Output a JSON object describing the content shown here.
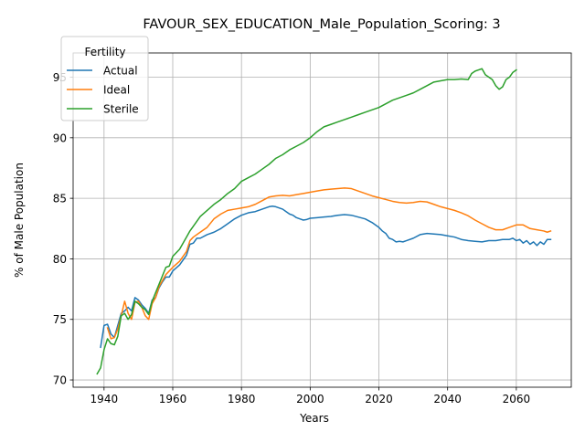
{
  "chart_data": {
    "type": "line",
    "title": "FAVOUR_SEX_EDUCATION_Male_Population_Scoring: 3",
    "xlabel": "Years",
    "ylabel": "% of Male Population",
    "xlim": [
      1931,
      2076
    ],
    "ylim": [
      69.4,
      97.0
    ],
    "xticks": [
      1940,
      1960,
      1980,
      2000,
      2020,
      2040,
      2060
    ],
    "yticks": [
      70,
      75,
      80,
      85,
      90,
      95
    ],
    "grid": true,
    "legend": {
      "title": "Fertility",
      "position": "upper-left",
      "entries": [
        "Actual",
        "Ideal",
        "Sterile"
      ]
    },
    "series": [
      {
        "name": "Actual",
        "color": "#1f77b4",
        "points": [
          [
            1939,
            72.7
          ],
          [
            1940,
            74.5
          ],
          [
            1941,
            74.6
          ],
          [
            1942,
            73.8
          ],
          [
            1943,
            73.5
          ],
          [
            1944,
            74.5
          ],
          [
            1945,
            75.5
          ],
          [
            1946,
            75.7
          ],
          [
            1947,
            76.0
          ],
          [
            1948,
            75.7
          ],
          [
            1949,
            76.8
          ],
          [
            1950,
            76.6
          ],
          [
            1951,
            76.2
          ],
          [
            1952,
            75.9
          ],
          [
            1953,
            75.5
          ],
          [
            1954,
            76.6
          ],
          [
            1955,
            76.8
          ],
          [
            1956,
            77.6
          ],
          [
            1957,
            78.1
          ],
          [
            1958,
            78.5
          ],
          [
            1959,
            78.5
          ],
          [
            1960,
            79.0
          ],
          [
            1962,
            79.5
          ],
          [
            1964,
            80.3
          ],
          [
            1965,
            81.2
          ],
          [
            1966,
            81.3
          ],
          [
            1967,
            81.7
          ],
          [
            1968,
            81.7
          ],
          [
            1970,
            82.0
          ],
          [
            1972,
            82.2
          ],
          [
            1974,
            82.5
          ],
          [
            1976,
            82.9
          ],
          [
            1978,
            83.3
          ],
          [
            1980,
            83.6
          ],
          [
            1982,
            83.8
          ],
          [
            1984,
            83.9
          ],
          [
            1986,
            84.1
          ],
          [
            1988,
            84.3
          ],
          [
            1989,
            84.35
          ],
          [
            1990,
            84.3
          ],
          [
            1992,
            84.1
          ],
          [
            1993,
            83.9
          ],
          [
            1994,
            83.7
          ],
          [
            1995,
            83.6
          ],
          [
            1996,
            83.4
          ],
          [
            1997,
            83.3
          ],
          [
            1998,
            83.2
          ],
          [
            1999,
            83.25
          ],
          [
            2000,
            83.35
          ],
          [
            2002,
            83.4
          ],
          [
            2004,
            83.45
          ],
          [
            2006,
            83.5
          ],
          [
            2008,
            83.6
          ],
          [
            2010,
            83.65
          ],
          [
            2012,
            83.6
          ],
          [
            2014,
            83.45
          ],
          [
            2016,
            83.3
          ],
          [
            2018,
            83.0
          ],
          [
            2020,
            82.6
          ],
          [
            2021,
            82.3
          ],
          [
            2022,
            82.1
          ],
          [
            2023,
            81.7
          ],
          [
            2024,
            81.6
          ],
          [
            2025,
            81.4
          ],
          [
            2026,
            81.45
          ],
          [
            2027,
            81.4
          ],
          [
            2028,
            81.5
          ],
          [
            2030,
            81.7
          ],
          [
            2032,
            82.0
          ],
          [
            2034,
            82.1
          ],
          [
            2036,
            82.05
          ],
          [
            2038,
            82.0
          ],
          [
            2040,
            81.9
          ],
          [
            2042,
            81.8
          ],
          [
            2044,
            81.6
          ],
          [
            2046,
            81.5
          ],
          [
            2048,
            81.45
          ],
          [
            2050,
            81.4
          ],
          [
            2052,
            81.5
          ],
          [
            2054,
            81.5
          ],
          [
            2056,
            81.6
          ],
          [
            2058,
            81.6
          ],
          [
            2059,
            81.7
          ],
          [
            2060,
            81.5
          ],
          [
            2061,
            81.6
          ],
          [
            2062,
            81.3
          ],
          [
            2063,
            81.5
          ],
          [
            2064,
            81.2
          ],
          [
            2065,
            81.4
          ],
          [
            2066,
            81.1
          ],
          [
            2067,
            81.4
          ],
          [
            2068,
            81.2
          ],
          [
            2069,
            81.6
          ],
          [
            2070,
            81.6
          ]
        ]
      },
      {
        "name": "Ideal",
        "color": "#ff7f0e",
        "points": [
          [
            1941,
            74.3
          ],
          [
            1942,
            73.4
          ],
          [
            1943,
            73.5
          ],
          [
            1944,
            74.2
          ],
          [
            1945,
            75.3
          ],
          [
            1946,
            76.5
          ],
          [
            1947,
            75.5
          ],
          [
            1948,
            75.0
          ],
          [
            1949,
            76.4
          ],
          [
            1950,
            76.5
          ],
          [
            1951,
            76.0
          ],
          [
            1952,
            75.3
          ],
          [
            1953,
            75.0
          ],
          [
            1954,
            76.3
          ],
          [
            1955,
            76.8
          ],
          [
            1956,
            77.7
          ],
          [
            1957,
            78.2
          ],
          [
            1958,
            78.7
          ],
          [
            1959,
            79.0
          ],
          [
            1960,
            79.3
          ],
          [
            1962,
            79.8
          ],
          [
            1964,
            80.6
          ],
          [
            1965,
            81.5
          ],
          [
            1966,
            81.8
          ],
          [
            1968,
            82.2
          ],
          [
            1970,
            82.6
          ],
          [
            1972,
            83.3
          ],
          [
            1974,
            83.7
          ],
          [
            1976,
            84.0
          ],
          [
            1978,
            84.1
          ],
          [
            1980,
            84.2
          ],
          [
            1982,
            84.3
          ],
          [
            1984,
            84.5
          ],
          [
            1986,
            84.8
          ],
          [
            1988,
            85.1
          ],
          [
            1990,
            85.2
          ],
          [
            1992,
            85.25
          ],
          [
            1994,
            85.2
          ],
          [
            1996,
            85.3
          ],
          [
            1998,
            85.4
          ],
          [
            2000,
            85.5
          ],
          [
            2002,
            85.6
          ],
          [
            2004,
            85.7
          ],
          [
            2006,
            85.75
          ],
          [
            2008,
            85.8
          ],
          [
            2010,
            85.85
          ],
          [
            2012,
            85.8
          ],
          [
            2014,
            85.6
          ],
          [
            2016,
            85.4
          ],
          [
            2018,
            85.2
          ],
          [
            2020,
            85.05
          ],
          [
            2022,
            84.9
          ],
          [
            2024,
            84.75
          ],
          [
            2026,
            84.65
          ],
          [
            2028,
            84.6
          ],
          [
            2030,
            84.65
          ],
          [
            2032,
            84.75
          ],
          [
            2034,
            84.7
          ],
          [
            2036,
            84.5
          ],
          [
            2038,
            84.3
          ],
          [
            2040,
            84.15
          ],
          [
            2042,
            84.0
          ],
          [
            2044,
            83.8
          ],
          [
            2046,
            83.55
          ],
          [
            2048,
            83.2
          ],
          [
            2050,
            82.9
          ],
          [
            2052,
            82.6
          ],
          [
            2054,
            82.4
          ],
          [
            2056,
            82.4
          ],
          [
            2058,
            82.6
          ],
          [
            2060,
            82.8
          ],
          [
            2062,
            82.8
          ],
          [
            2064,
            82.5
          ],
          [
            2066,
            82.4
          ],
          [
            2068,
            82.3
          ],
          [
            2069,
            82.2
          ],
          [
            2070,
            82.3
          ]
        ]
      },
      {
        "name": "Sterile",
        "color": "#2ca02c",
        "points": [
          [
            1938,
            70.5
          ],
          [
            1939,
            71.0
          ],
          [
            1940,
            72.5
          ],
          [
            1941,
            73.4
          ],
          [
            1942,
            73.0
          ],
          [
            1943,
            72.9
          ],
          [
            1944,
            73.6
          ],
          [
            1945,
            75.3
          ],
          [
            1946,
            75.5
          ],
          [
            1947,
            75.0
          ],
          [
            1948,
            75.4
          ],
          [
            1949,
            76.5
          ],
          [
            1950,
            76.3
          ],
          [
            1951,
            76.0
          ],
          [
            1952,
            75.8
          ],
          [
            1953,
            75.4
          ],
          [
            1954,
            76.5
          ],
          [
            1955,
            77.2
          ],
          [
            1956,
            77.9
          ],
          [
            1957,
            78.6
          ],
          [
            1958,
            79.3
          ],
          [
            1959,
            79.4
          ],
          [
            1960,
            80.2
          ],
          [
            1962,
            80.8
          ],
          [
            1964,
            81.8
          ],
          [
            1965,
            82.3
          ],
          [
            1966,
            82.7
          ],
          [
            1968,
            83.5
          ],
          [
            1970,
            84.0
          ],
          [
            1972,
            84.5
          ],
          [
            1974,
            84.9
          ],
          [
            1976,
            85.4
          ],
          [
            1978,
            85.8
          ],
          [
            1980,
            86.4
          ],
          [
            1982,
            86.7
          ],
          [
            1984,
            87.0
          ],
          [
            1986,
            87.4
          ],
          [
            1988,
            87.8
          ],
          [
            1990,
            88.3
          ],
          [
            1992,
            88.6
          ],
          [
            1994,
            89.0
          ],
          [
            1996,
            89.3
          ],
          [
            1998,
            89.6
          ],
          [
            2000,
            90.0
          ],
          [
            2002,
            90.5
          ],
          [
            2004,
            90.9
          ],
          [
            2006,
            91.1
          ],
          [
            2008,
            91.3
          ],
          [
            2010,
            91.5
          ],
          [
            2012,
            91.7
          ],
          [
            2014,
            91.9
          ],
          [
            2016,
            92.1
          ],
          [
            2018,
            92.3
          ],
          [
            2020,
            92.5
          ],
          [
            2022,
            92.8
          ],
          [
            2024,
            93.1
          ],
          [
            2026,
            93.3
          ],
          [
            2028,
            93.5
          ],
          [
            2030,
            93.7
          ],
          [
            2032,
            94.0
          ],
          [
            2034,
            94.3
          ],
          [
            2036,
            94.6
          ],
          [
            2038,
            94.7
          ],
          [
            2040,
            94.8
          ],
          [
            2042,
            94.8
          ],
          [
            2044,
            94.85
          ],
          [
            2046,
            94.8
          ],
          [
            2047,
            95.3
          ],
          [
            2048,
            95.5
          ],
          [
            2049,
            95.6
          ],
          [
            2050,
            95.7
          ],
          [
            2051,
            95.2
          ],
          [
            2052,
            95.0
          ],
          [
            2053,
            94.8
          ],
          [
            2054,
            94.3
          ],
          [
            2055,
            94.0
          ],
          [
            2056,
            94.2
          ],
          [
            2057,
            94.8
          ],
          [
            2058,
            95.0
          ],
          [
            2059,
            95.4
          ],
          [
            2060,
            95.6
          ]
        ]
      }
    ]
  }
}
